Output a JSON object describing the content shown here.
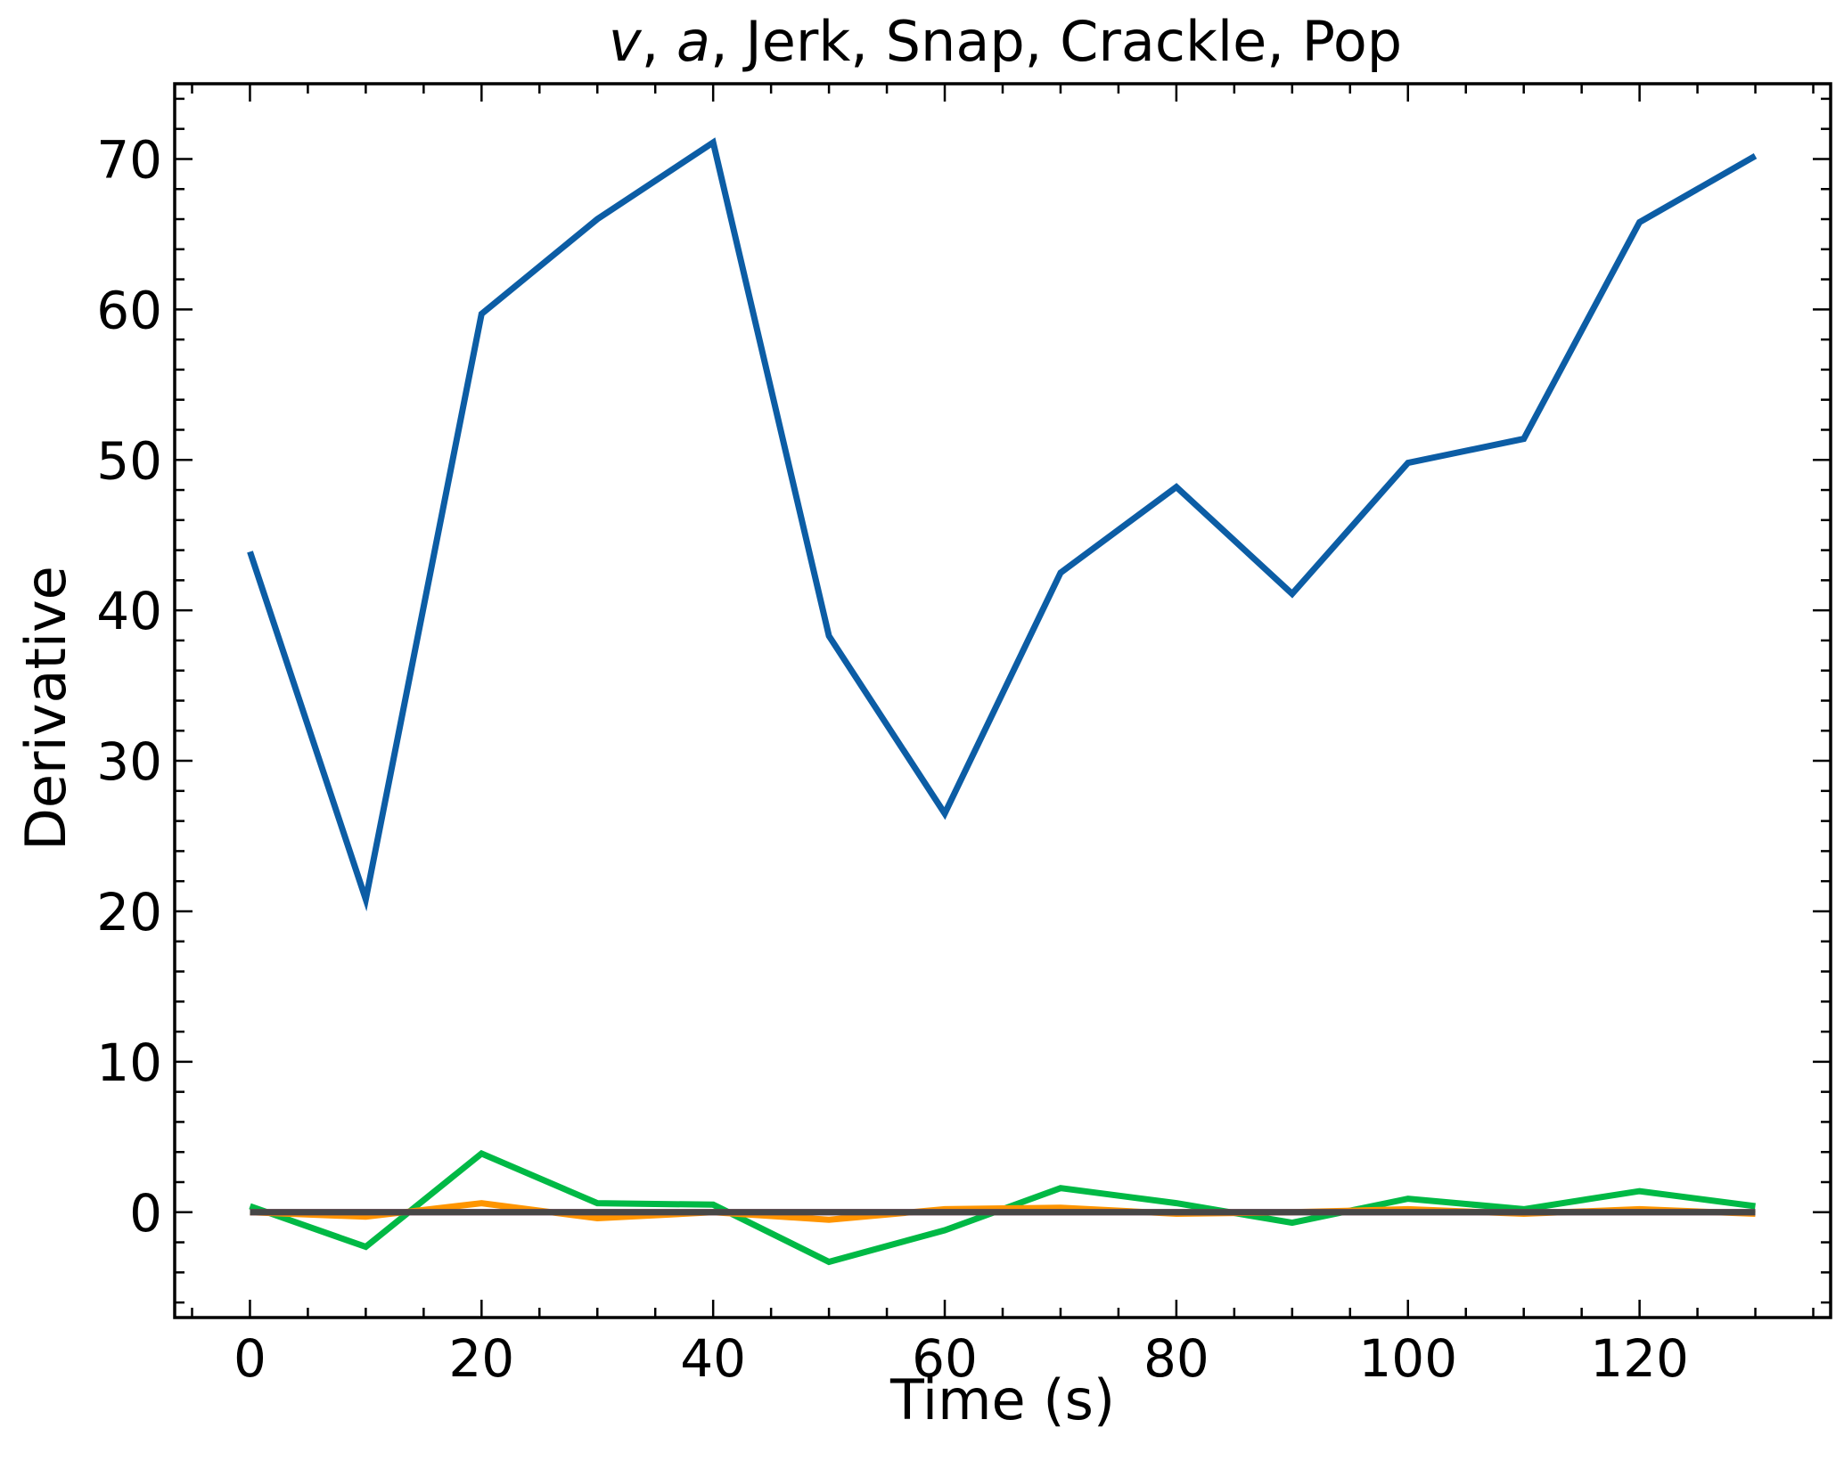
{
  "chart_data": {
    "type": "line",
    "title": {
      "italic_1": "v",
      "sep_1": ", ",
      "italic_2": "a",
      "rest": ",  Jerk, Snap, Crackle, Pop"
    },
    "xlabel": "Time (s)",
    "ylabel": "Derivative",
    "xlim": [
      -6.5,
      136.5
    ],
    "ylim": [
      -7,
      75
    ],
    "xticks": [
      0,
      20,
      40,
      60,
      80,
      100,
      120
    ],
    "yticks": [
      0,
      10,
      20,
      30,
      40,
      50,
      60,
      70
    ],
    "x_minor_step": 5,
    "y_minor_step": 2,
    "grid": false,
    "x": [
      0,
      10,
      20,
      30,
      40,
      50,
      60,
      70,
      80,
      90,
      100,
      110,
      120,
      130
    ],
    "series": [
      {
        "color": "#0c5da5",
        "values": [
          43.9,
          20.8,
          59.7,
          66.0,
          71.1,
          38.3,
          26.5,
          42.5,
          48.2,
          41.1,
          49.8,
          51.4,
          65.8,
          70.2
        ]
      },
      {
        "color": "#00b945",
        "values": [
          0.4,
          -2.3,
          3.9,
          0.6,
          0.5,
          -3.3,
          -1.2,
          1.6,
          0.6,
          -0.7,
          0.9,
          0.2,
          1.4,
          0.4
        ]
      },
      {
        "color": "#ff9500",
        "values": [
          0.0,
          -0.3,
          0.6,
          -0.4,
          0.0,
          -0.5,
          0.2,
          0.3,
          -0.1,
          0.0,
          0.2,
          -0.1,
          0.2,
          -0.1
        ]
      },
      {
        "color": "#ff2c00",
        "values": [
          0.0,
          0.0,
          0.0,
          0.0,
          0.0,
          0.0,
          0.0,
          0.0,
          0.0,
          0.0,
          0.0,
          0.0,
          0.0,
          0.0
        ]
      },
      {
        "color": "#845b97",
        "values": [
          0.0,
          0.0,
          0.0,
          0.0,
          0.0,
          0.0,
          0.0,
          0.0,
          0.0,
          0.0,
          0.0,
          0.0,
          0.0,
          0.0
        ]
      },
      {
        "color": "#474747",
        "values": [
          0.0,
          0.0,
          0.0,
          0.0,
          0.0,
          0.0,
          0.0,
          0.0,
          0.0,
          0.0,
          0.0,
          0.0,
          0.0,
          0.0
        ]
      }
    ]
  }
}
